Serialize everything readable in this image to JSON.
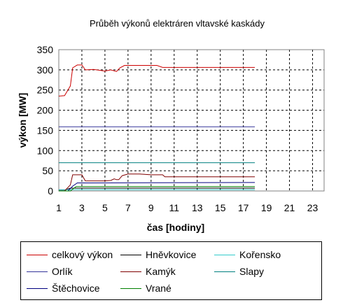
{
  "chart_data": {
    "type": "line",
    "title": "Průběh výkonů elektráren vltavské kaskády",
    "xlabel": "čas [hodiny]",
    "ylabel": "výkon [MW]",
    "xlim": [
      1,
      24
    ],
    "ylim": [
      0,
      350
    ],
    "xticks": [
      "1",
      "3",
      "5",
      "7",
      "9",
      "11",
      "13",
      "15",
      "17",
      "19",
      "21",
      "23"
    ],
    "yticks": [
      "0",
      "50",
      "100",
      "150",
      "200",
      "250",
      "300",
      "350"
    ],
    "grid": "dashed",
    "legend_position": "bottom",
    "series": [
      {
        "name": "celkový výkon",
        "color": "#cc0000",
        "points": [
          [
            1,
            235
          ],
          [
            1.5,
            236
          ],
          [
            2,
            260
          ],
          [
            2.2,
            305
          ],
          [
            2.6,
            312
          ],
          [
            3,
            312
          ],
          [
            3.3,
            300
          ],
          [
            4,
            301
          ],
          [
            4.5,
            299
          ],
          [
            5,
            297
          ],
          [
            5.5,
            300
          ],
          [
            6,
            296
          ],
          [
            6.3,
            305
          ],
          [
            6.7,
            311
          ],
          [
            8,
            311
          ],
          [
            9.5,
            311
          ],
          [
            10,
            306
          ],
          [
            11,
            306
          ],
          [
            14,
            306
          ],
          [
            18,
            306
          ]
        ]
      },
      {
        "name": "Hněvkovice",
        "color": "#000000",
        "points": [
          [
            1,
            2
          ],
          [
            1.6,
            2
          ],
          [
            1.8,
            5
          ],
          [
            2,
            7
          ],
          [
            18,
            7
          ]
        ]
      },
      {
        "name": "Kořensko",
        "color": "#33cccc",
        "points": [
          [
            1,
            3
          ],
          [
            18,
            3
          ]
        ]
      },
      {
        "name": "Orlík",
        "color": "#333399",
        "points": [
          [
            1,
            159
          ],
          [
            18,
            159
          ]
        ]
      },
      {
        "name": "Kamýk",
        "color": "#800000",
        "points": [
          [
            1,
            0
          ],
          [
            1.5,
            0
          ],
          [
            2,
            15
          ],
          [
            2.2,
            40
          ],
          [
            3,
            40
          ],
          [
            3.3,
            25
          ],
          [
            4,
            25
          ],
          [
            5,
            25
          ],
          [
            5.5,
            26
          ],
          [
            5.8,
            30
          ],
          [
            6,
            28
          ],
          [
            6.2,
            28
          ],
          [
            6.5,
            38
          ],
          [
            7,
            42
          ],
          [
            8,
            42
          ],
          [
            9,
            40
          ],
          [
            10,
            40
          ],
          [
            10.2,
            35
          ],
          [
            18,
            35
          ]
        ]
      },
      {
        "name": "Slapy",
        "color": "#008080",
        "points": [
          [
            1,
            70
          ],
          [
            18,
            70
          ]
        ]
      },
      {
        "name": "Štěchovice",
        "color": "#000080",
        "points": [
          [
            1,
            0
          ],
          [
            1.8,
            0
          ],
          [
            2.2,
            12
          ],
          [
            2.6,
            20
          ],
          [
            18,
            21
          ]
        ]
      },
      {
        "name": "Vrané",
        "color": "#008000",
        "points": [
          [
            1,
            0
          ],
          [
            2,
            0
          ],
          [
            2.5,
            11
          ],
          [
            3,
            11
          ],
          [
            18,
            11
          ]
        ]
      }
    ]
  }
}
